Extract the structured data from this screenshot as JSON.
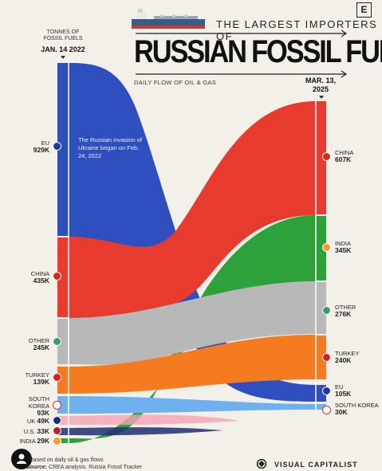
{
  "header": {
    "title_top": "THE LARGEST IMPORTERS OF",
    "title_main": "RUSSIAN FOSSIL FUELS",
    "subtitle": "DAILY FLOW OF OIL & GAS",
    "logo_letter": "E"
  },
  "left_axis": {
    "unit_label": "TONNES OF FOSSIL FUELS",
    "date": "JAN. 14 2022"
  },
  "right_axis": {
    "date": "MAR. 13, 2025"
  },
  "annotation": "The Russian invasion of Ukraine began on Feb. 24, 2022",
  "left_nodes": [
    {
      "name": "EU",
      "value_label": "929K",
      "value": 929,
      "color": "#2f4fbf",
      "flag": "eu"
    },
    {
      "name": "CHINA",
      "value_label": "435K",
      "value": 435,
      "color": "#e63b2e",
      "flag": "cn"
    },
    {
      "name": "OTHER",
      "value_label": "245K",
      "value": 245,
      "color": "#b8b8b8",
      "flag": "globe"
    },
    {
      "name": "TURKEY",
      "value_label": "139K",
      "value": 139,
      "color": "#f47b20",
      "flag": "tr"
    },
    {
      "name": "SOUTH KOREA",
      "value_label": "93K",
      "value": 93,
      "color": "#6fb1ef",
      "flag": "kr"
    },
    {
      "name": "UK",
      "value_label": "49K",
      "value": 49,
      "color": "#f4a3b4",
      "flag": "uk"
    },
    {
      "name": "U.S.",
      "value_label": "33K",
      "value": 33,
      "color": "#1f2f6f",
      "flag": "us"
    },
    {
      "name": "INDIA",
      "value_label": "29K",
      "value": 29,
      "color": "#2da23a",
      "flag": "in"
    }
  ],
  "right_nodes": [
    {
      "name": "CHINA",
      "value_label": "607K",
      "value": 607,
      "color": "#e63b2e",
      "flag": "cn"
    },
    {
      "name": "INDIA",
      "value_label": "345K",
      "value": 345,
      "color": "#2da23a",
      "flag": "in"
    },
    {
      "name": "OTHER",
      "value_label": "276K",
      "value": 276,
      "color": "#b8b8b8",
      "flag": "globe"
    },
    {
      "name": "TURKEY",
      "value_label": "240K",
      "value": 240,
      "color": "#f47b20",
      "flag": "tr"
    },
    {
      "name": "EU",
      "value_label": "105K",
      "value": 105,
      "color": "#2f4fbf",
      "flag": "eu"
    },
    {
      "name": "SOUTH KOREA",
      "value_label": "30K",
      "value": 30,
      "color": "#6fb1ef",
      "flag": "kr"
    }
  ],
  "footer": {
    "note": "Based on daily oil & gas flows",
    "source_label": "Source:",
    "source": "CREA analysis. Russia Fossil Tracker",
    "brand": "VISUAL CAPITALIST"
  }
}
